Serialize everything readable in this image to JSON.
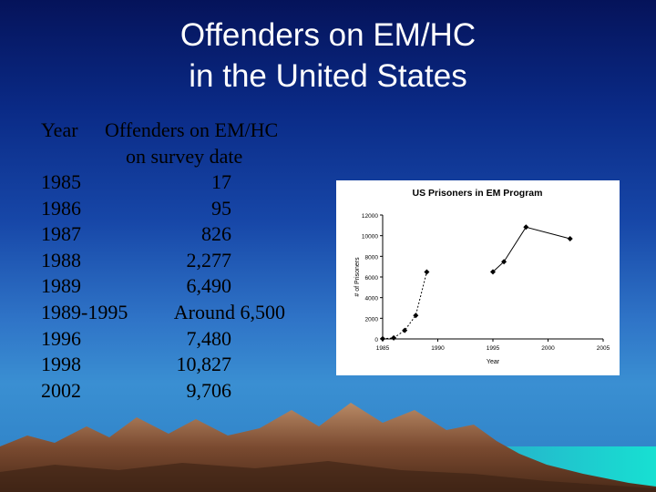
{
  "title": {
    "line1": "Offenders on EM/HC",
    "line2": "in the United States"
  },
  "table": {
    "header_year": "Year",
    "header_value_line1": "Offenders on EM/HC",
    "header_value_line2": "on survey date",
    "rows": [
      {
        "year": "1985",
        "value": "17"
      },
      {
        "year": "1986",
        "value": "95"
      },
      {
        "year": "1987",
        "value": "826"
      },
      {
        "year": "1988",
        "value": "2,277"
      },
      {
        "year": "1989",
        "value": "6,490"
      },
      {
        "year": "1989-1995",
        "value": "Around 6,500"
      },
      {
        "year": "1996",
        "value": "7,480"
      },
      {
        "year": "1998",
        "value": "10,827"
      },
      {
        "year": "2002",
        "value": "9,706"
      }
    ]
  },
  "chart_data": {
    "type": "line",
    "title": "US Prisoners in EM Program",
    "xlabel": "Year",
    "ylabel": "# of Prisoners",
    "xlim": [
      1985,
      2005
    ],
    "ylim": [
      0,
      12000
    ],
    "xticks": [
      "1985",
      "1990",
      "1995",
      "2000",
      "2005"
    ],
    "yticks": [
      "0",
      "2000",
      "4000",
      "6000",
      "8000",
      "10000",
      "12000"
    ],
    "grid": false,
    "legend": "none",
    "line_color": "#000000",
    "series": [
      {
        "points": [
          [
            1985,
            17
          ],
          [
            1986,
            95
          ],
          [
            1987,
            826
          ],
          [
            1988,
            2277
          ],
          [
            1989,
            6490
          ]
        ],
        "style": "dotted"
      },
      {
        "points": [
          [
            1995,
            6500
          ],
          [
            1996,
            7480
          ],
          [
            1998,
            10827
          ],
          [
            2002,
            9706
          ]
        ],
        "style": "solid"
      }
    ],
    "bridge_style": "gap"
  },
  "colors": {
    "sky_top": "#05135a",
    "sky_bottom": "#3a8fd2",
    "title_text": "#ffffff",
    "mountain": "#7a4a30",
    "water": "#1fc8d2"
  }
}
